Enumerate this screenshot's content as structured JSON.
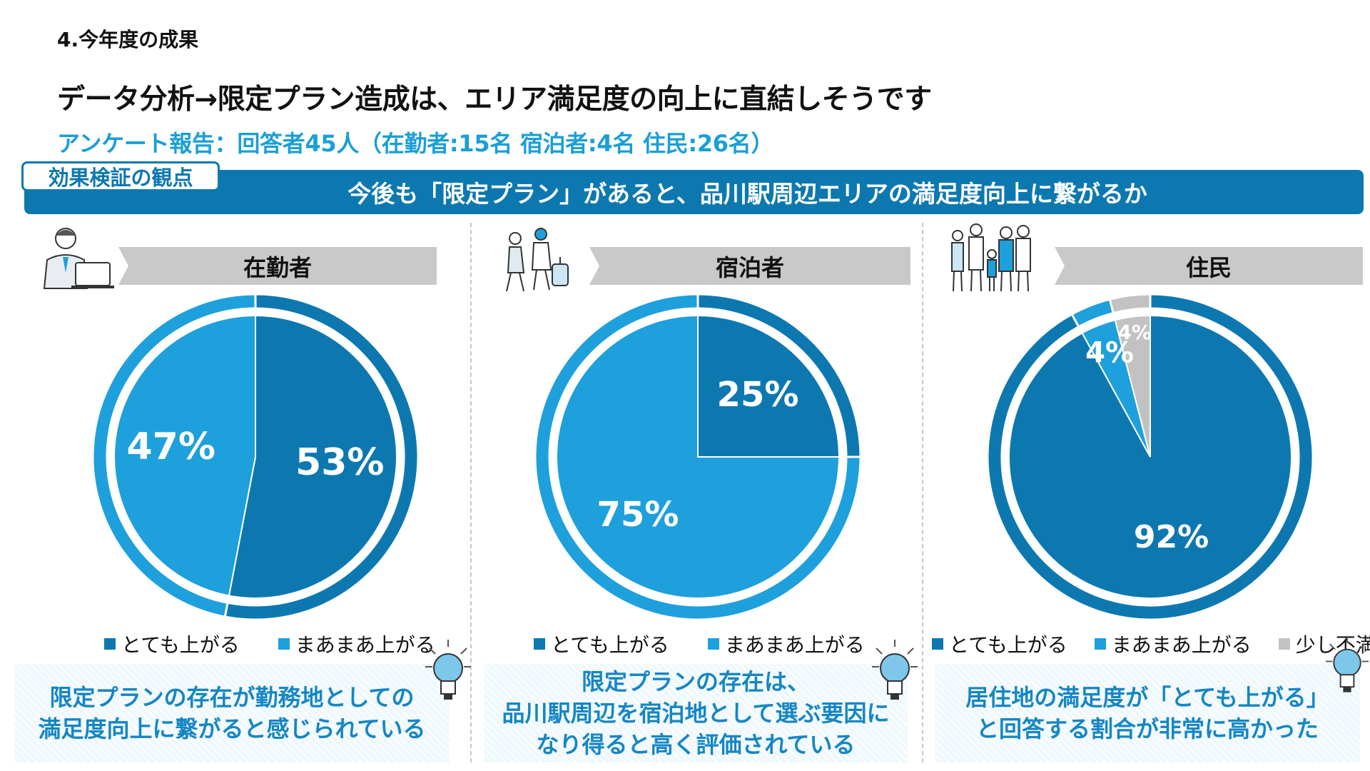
{
  "page": {
    "section_title": "4.今年度の成果",
    "headline": "データ分析→限定プラン造成は、エリア満足度の向上に直結しそうです",
    "survey_line": "アンケート報告：回答者45人（在勤者:15名 宿泊者:4名 住民:26名）"
  },
  "banner": {
    "tag": "効果検証の観点",
    "question": "今後も「限定プラン」があると、品川駅周辺エリアの満足度向上に繋がるか"
  },
  "colors": {
    "dark": "#0d78b0",
    "light": "#1ea0dc",
    "gray": "#c2c2c2"
  },
  "panels": [
    {
      "title": "在勤者",
      "people_icon": "office-worker-icon",
      "legend": [
        "とても上がる",
        "まあまあ上がる"
      ],
      "note": "限定プランの存在が勤務地としての\n満足度向上に繋がると感じられている"
    },
    {
      "title": "宿泊者",
      "people_icon": "travelers-icon",
      "legend": [
        "とても上がる",
        "まあまあ上がる"
      ],
      "note": "限定プランの存在は、\n品川駅周辺を宿泊地として選ぶ要因に\nなり得ると高く評価されている"
    },
    {
      "title": "住民",
      "people_icon": "residents-family-icon",
      "legend": [
        "とても上がる",
        "まあまあ上がる",
        "少し不満"
      ],
      "note": "居住地の満足度が「とても上がる」\nと回答する割合が非常に高かった"
    }
  ],
  "chart_data": [
    {
      "type": "pie",
      "title": "在勤者",
      "categories": [
        "とても上がる",
        "まあまあ上がる"
      ],
      "values": [
        53,
        47
      ],
      "labels": [
        "53%",
        "47%"
      ]
    },
    {
      "type": "pie",
      "title": "宿泊者",
      "categories": [
        "とても上がる",
        "まあまあ上がる"
      ],
      "values": [
        25,
        75
      ],
      "labels": [
        "25%",
        "75%"
      ]
    },
    {
      "type": "pie",
      "title": "住民",
      "categories": [
        "とても上がる",
        "まあまあ上がる",
        "少し不満"
      ],
      "values": [
        92,
        4,
        4
      ],
      "labels": [
        "92%",
        "4%",
        "4%"
      ]
    }
  ]
}
